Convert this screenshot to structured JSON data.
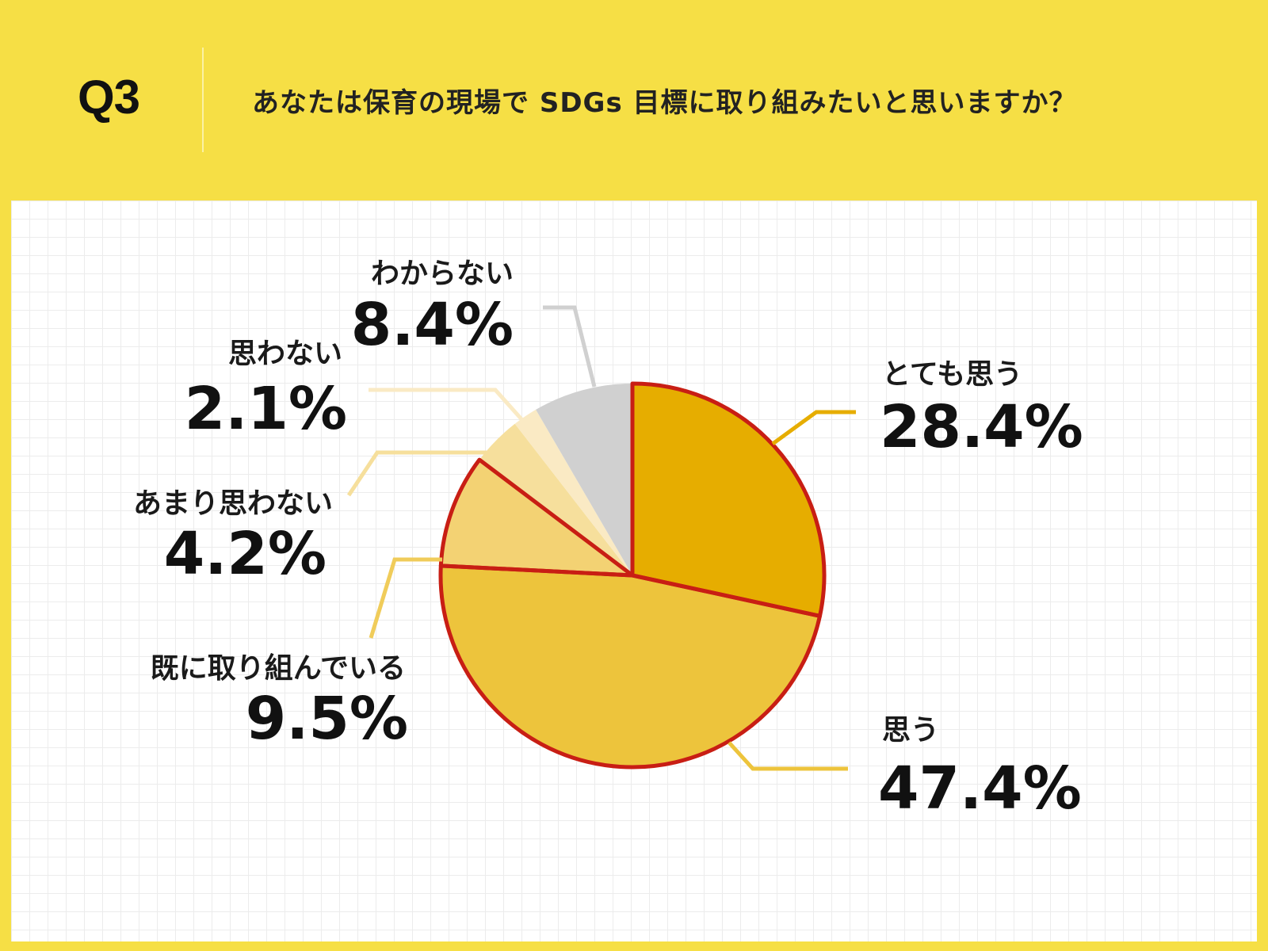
{
  "header": {
    "q_label": "Q3",
    "question": "あなたは保育の現場で SDGs 目標に取り組みたいと思いますか？"
  },
  "colors": {
    "background": "#f6df45",
    "outline": "#c81e14"
  },
  "chart_data": {
    "type": "pie",
    "start_angle_deg": 0,
    "direction": "clockwise",
    "slices": [
      {
        "label": "とても思う",
        "value": 28.4,
        "value_label": "28.4%",
        "color": "#e6ad00",
        "outlined": true
      },
      {
        "label": "思う",
        "value": 47.4,
        "value_label": "47.4%",
        "color": "#edc43c",
        "outlined": true
      },
      {
        "label": "既に取り組んでいる",
        "value": 9.5,
        "value_label": "9.5%",
        "color": "#f3d273",
        "outlined": true
      },
      {
        "label": "あまり思わない",
        "value": 4.2,
        "value_label": "4.2%",
        "color": "#f6df9c",
        "outlined": false
      },
      {
        "label": "思わない",
        "value": 2.1,
        "value_label": "2.1%",
        "color": "#faeac4",
        "outlined": false
      },
      {
        "label": "わからない",
        "value": 8.4,
        "value_label": "8.4%",
        "color": "#d0d0d0",
        "outlined": false
      }
    ]
  }
}
